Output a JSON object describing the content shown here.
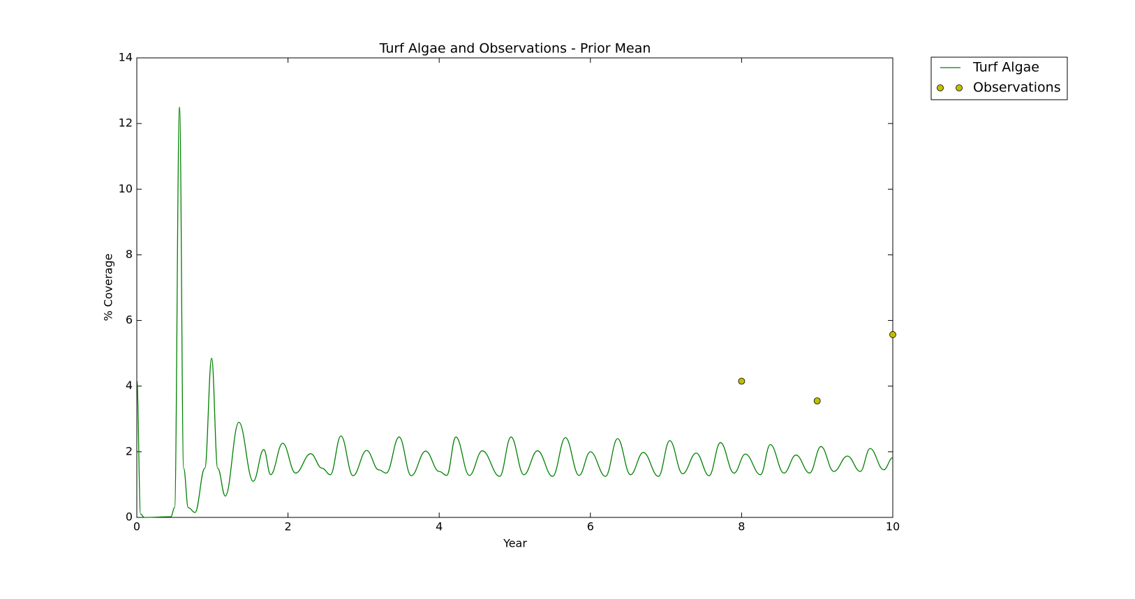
{
  "chart_data": {
    "type": "line",
    "title": "Turf Algae and Observations - Prior Mean",
    "x_label": "Year",
    "y_label": "% Coverage",
    "xlim": [
      0,
      10
    ],
    "xticks": [
      0,
      2,
      4,
      6,
      8,
      10
    ],
    "ylim": [
      0,
      14
    ],
    "yticks": [
      0,
      2,
      4,
      6,
      8,
      10,
      12,
      14
    ],
    "grid": false,
    "legend": "outside upper right",
    "series": [
      {
        "name": "Turf Algae",
        "color": "#008000",
        "style": "line",
        "x": [
          0,
          0.05,
          0.1,
          0.45,
          0.5,
          0.565,
          0.62,
          0.68,
          0.77,
          0.9,
          0.99,
          1.07,
          1.17,
          1.35,
          1.54,
          1.68,
          1.77,
          1.93,
          2.1,
          2.3,
          2.45,
          2.56,
          2.7,
          2.86,
          3.04,
          3.2,
          3.3,
          3.47,
          3.63,
          3.82,
          4.0,
          4.1,
          4.22,
          4.4,
          4.57,
          4.8,
          4.95,
          5.12,
          5.3,
          5.5,
          5.67,
          5.85,
          6.0,
          6.2,
          6.36,
          6.53,
          6.7,
          6.9,
          7.05,
          7.22,
          7.4,
          7.57,
          7.72,
          7.9,
          8.05,
          8.25,
          8.38,
          8.56,
          8.72,
          8.9,
          9.05,
          9.22,
          9.4,
          9.57,
          9.7,
          9.88,
          10
        ],
        "values": [
          4.2,
          0.1,
          0,
          0.02,
          0.3,
          12.5,
          1.5,
          0.3,
          0.15,
          1.5,
          4.85,
          1.5,
          0.65,
          2.9,
          1.1,
          2.07,
          1.3,
          2.26,
          1.35,
          1.94,
          1.5,
          1.3,
          2.48,
          1.27,
          2.04,
          1.45,
          1.35,
          2.45,
          1.27,
          2.02,
          1.4,
          1.28,
          2.45,
          1.28,
          2.03,
          1.25,
          2.45,
          1.3,
          2.03,
          1.25,
          2.43,
          1.28,
          2.0,
          1.25,
          2.4,
          1.3,
          1.98,
          1.25,
          2.34,
          1.33,
          1.96,
          1.27,
          2.28,
          1.35,
          1.93,
          1.3,
          2.22,
          1.35,
          1.9,
          1.35,
          2.16,
          1.4,
          1.87,
          1.4,
          2.1,
          1.45,
          1.82
        ]
      },
      {
        "name": "Observations",
        "color": "#bfbf00",
        "style": "marker",
        "x": [
          8,
          9,
          10
        ],
        "values": [
          4.15,
          3.55,
          5.57
        ]
      }
    ]
  }
}
